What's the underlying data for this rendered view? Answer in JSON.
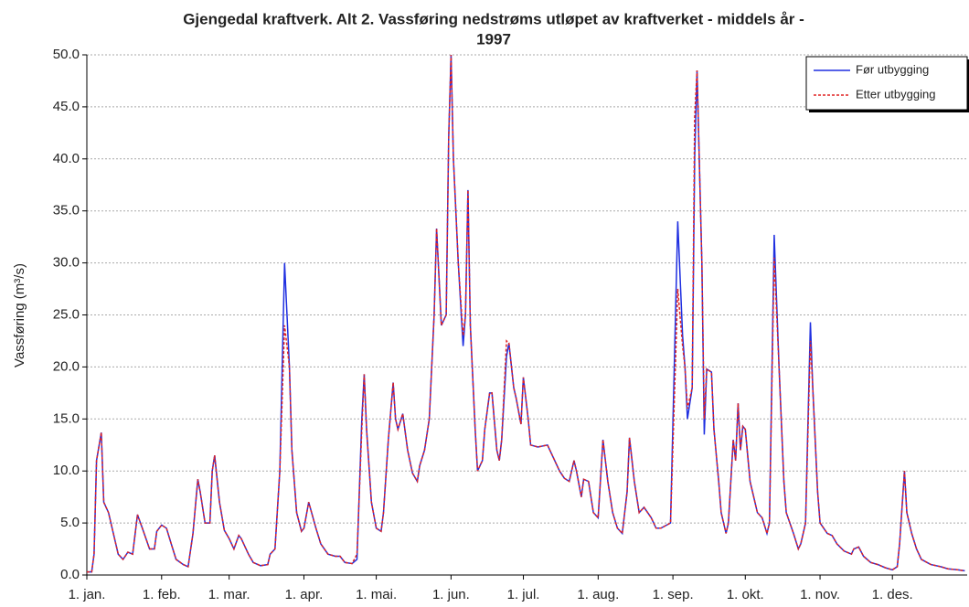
{
  "chart_data": {
    "type": "line",
    "title": [
      "Gjengedal  kraftverk. Alt 2. Vassføring nedstrøms utløpet av kraftverket - middels år -",
      "1997"
    ],
    "ylabel": "Vassføring (m³/s)",
    "x": [
      1,
      3,
      4,
      5,
      7,
      8,
      10,
      12,
      14,
      16,
      18,
      20,
      22,
      24,
      27,
      29,
      30,
      32,
      34,
      36,
      38,
      41,
      43,
      45,
      47,
      48,
      50,
      52,
      53,
      54,
      56,
      58,
      60,
      62,
      64,
      65,
      68,
      70,
      73,
      76,
      77,
      79,
      81,
      83,
      85,
      86,
      88,
      90,
      91,
      93,
      96,
      98,
      101,
      104,
      106,
      108,
      111,
      113,
      115,
      116,
      117,
      119,
      121,
      123,
      124,
      126,
      128,
      129,
      130,
      132,
      134,
      136,
      138,
      139,
      141,
      143,
      145,
      146,
      148,
      150,
      151,
      152,
      153,
      155,
      157,
      158,
      159,
      160,
      162,
      163,
      165,
      166,
      168,
      169,
      171,
      172,
      173,
      175,
      176,
      178,
      179,
      181,
      182,
      184,
      185,
      188,
      192,
      195,
      197,
      199,
      201,
      203,
      204,
      206,
      207,
      209,
      211,
      213,
      215,
      217,
      219,
      221,
      223,
      225,
      226,
      228,
      230,
      232,
      235,
      237,
      239,
      243,
      246,
      248,
      249,
      250,
      252,
      253,
      254,
      256,
      257,
      258,
      260,
      261,
      263,
      264,
      266,
      267,
      269,
      270,
      271,
      272,
      273,
      274,
      276,
      279,
      281,
      283,
      284,
      286,
      288,
      290,
      291,
      294,
      296,
      297,
      299,
      301,
      302,
      304,
      305,
      308,
      310,
      312,
      315,
      318,
      319,
      321,
      323,
      326,
      329,
      332,
      335,
      337,
      338,
      340,
      341,
      343,
      345,
      347,
      351,
      355,
      358,
      362,
      365
    ],
    "series": [
      {
        "name": "Før utbygging",
        "color": "#1f2fe0",
        "line_style": "solid",
        "values": [
          0.3,
          0.3,
          2,
          11,
          13.7,
          7,
          6,
          4,
          2,
          1.5,
          2.2,
          2,
          5.8,
          4.5,
          2.5,
          2.5,
          4.2,
          4.8,
          4.5,
          3,
          1.5,
          1,
          0.8,
          4,
          9.2,
          8,
          5,
          5,
          10,
          11.5,
          7,
          4.3,
          3.5,
          2.5,
          3.8,
          3.5,
          2,
          1.2,
          0.9,
          1,
          2,
          2.5,
          10,
          30,
          20,
          12,
          6,
          4.2,
          4.5,
          7,
          4.5,
          3,
          2,
          1.8,
          1.8,
          1.2,
          1.1,
          1.5,
          15,
          19.3,
          14,
          7,
          4.5,
          4.2,
          6,
          13,
          18.5,
          15,
          14,
          15.5,
          12,
          9.8,
          9,
          10.5,
          12,
          15,
          25,
          33.3,
          24,
          25,
          42,
          50,
          40,
          30,
          22,
          25,
          37,
          24,
          14,
          10,
          11,
          14,
          17.5,
          17.5,
          12,
          11,
          13,
          21,
          22.3,
          18,
          17,
          14.5,
          19,
          15,
          12.5,
          12.3,
          12.5,
          11,
          10,
          9.3,
          9,
          11,
          10,
          7.5,
          9.2,
          9,
          6,
          5.5,
          13,
          9,
          6,
          4.5,
          4,
          8,
          13.2,
          9,
          6,
          6.5,
          5.5,
          4.5,
          4.5,
          5,
          34,
          23,
          20,
          15,
          18,
          40,
          48.5,
          30,
          13.5,
          19.8,
          19.5,
          14,
          9,
          6,
          4,
          5,
          13,
          11,
          16.5,
          12,
          14.3,
          14,
          9,
          6,
          5.5,
          4,
          5,
          32.7,
          20,
          9,
          6,
          4,
          2.5,
          3,
          5,
          24.3,
          18,
          8,
          5,
          4,
          3.8,
          3,
          2.3,
          2,
          2.5,
          2.7,
          1.8,
          1.2,
          1,
          0.7,
          0.5,
          0.8,
          3,
          10,
          6,
          4,
          2.5,
          1.5,
          1,
          0.8,
          0.6,
          0.5,
          0.4
        ]
      },
      {
        "name": "Etter utbygging",
        "color": "#e02424",
        "line_style": "dashed",
        "values": [
          0.3,
          0.3,
          2,
          11,
          13.7,
          7,
          6,
          4,
          2,
          1.5,
          2.2,
          2,
          5.8,
          4.5,
          2.5,
          2.5,
          4.2,
          4.8,
          4.5,
          3,
          1.5,
          1,
          0.8,
          4,
          9.2,
          8,
          5,
          5,
          10,
          11.5,
          7,
          4.3,
          3.5,
          2.5,
          3.8,
          3.5,
          2,
          1.2,
          0.9,
          1,
          2,
          2.5,
          10,
          24,
          20,
          12,
          6,
          4.2,
          4.5,
          7,
          4.5,
          3,
          2,
          1.8,
          1.8,
          1.2,
          1.1,
          2,
          14,
          19.3,
          14,
          7,
          4.5,
          4.2,
          6,
          13,
          18.5,
          15,
          14,
          15.5,
          12,
          9.8,
          9,
          10.5,
          12,
          15,
          25,
          33.3,
          24,
          25,
          42,
          50,
          40,
          30,
          23,
          25,
          37,
          24,
          14,
          10,
          11,
          14,
          17.5,
          17.5,
          12,
          11,
          13,
          22.5,
          22.3,
          18,
          17,
          14.5,
          19,
          15,
          12.5,
          12.3,
          12.5,
          11,
          10,
          9.3,
          9,
          11,
          10,
          7.5,
          9.2,
          9,
          6,
          5.5,
          13,
          9,
          6,
          4.5,
          4,
          8,
          13.2,
          9,
          6,
          6.5,
          5.5,
          4.5,
          4.5,
          5,
          27.5,
          22,
          20,
          16,
          18,
          44,
          48.5,
          30,
          15,
          19.8,
          19.5,
          14,
          9,
          6,
          4,
          5,
          13,
          11,
          16.5,
          12,
          14.3,
          14,
          9,
          6,
          5.5,
          4,
          5,
          30.5,
          20,
          9,
          6,
          4,
          2.5,
          3,
          5,
          22.5,
          18,
          8,
          5,
          4,
          3.8,
          3,
          2.3,
          2,
          2.5,
          2.7,
          1.8,
          1.2,
          1,
          0.7,
          0.5,
          0.8,
          3,
          10,
          6,
          4,
          2.5,
          1.5,
          1,
          0.8,
          0.6,
          0.5,
          0.4
        ]
      }
    ],
    "xlim": [
      1,
      366
    ],
    "xticks": [
      {
        "value": 1,
        "label": "1. jan."
      },
      {
        "value": 32,
        "label": "1. feb."
      },
      {
        "value": 60,
        "label": "1. mar."
      },
      {
        "value": 91,
        "label": "1. apr."
      },
      {
        "value": 121,
        "label": "1. mai."
      },
      {
        "value": 152,
        "label": "1. jun."
      },
      {
        "value": 182,
        "label": "1. jul."
      },
      {
        "value": 213,
        "label": "1. aug."
      },
      {
        "value": 244,
        "label": "1. sep."
      },
      {
        "value": 274,
        "label": "1. okt."
      },
      {
        "value": 305,
        "label": "1. nov."
      },
      {
        "value": 335,
        "label": "1. des."
      }
    ],
    "ylim": [
      0,
      50
    ],
    "yticks": [
      {
        "value": 0,
        "label": "0.0"
      },
      {
        "value": 5,
        "label": "5.0"
      },
      {
        "value": 10,
        "label": "10.0"
      },
      {
        "value": 15,
        "label": "15.0"
      },
      {
        "value": 20,
        "label": "20.0"
      },
      {
        "value": 25,
        "label": "25.0"
      },
      {
        "value": 30,
        "label": "30.0"
      },
      {
        "value": 35,
        "label": "35.0"
      },
      {
        "value": 40,
        "label": "40.0"
      },
      {
        "value": 45,
        "label": "45.0"
      },
      {
        "value": 50,
        "label": "50.0"
      }
    ],
    "grid": true,
    "legend": "upper right"
  }
}
